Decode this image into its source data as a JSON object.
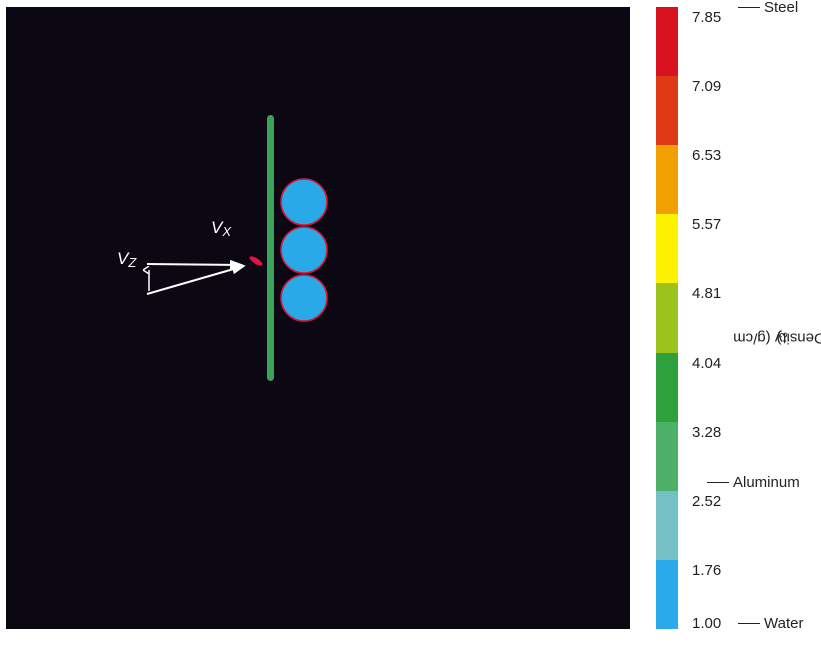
{
  "scene": {
    "background": "#0b0814",
    "plate_color": "#3aa35a",
    "sphere_color": "#29a9e8",
    "sphere_outline": "#d11a3a",
    "projectile_color": "#e0143c",
    "arrow_color": "#ffffff",
    "sphere_count": 3,
    "labels": {
      "vx": {
        "base": "V",
        "sub": "X"
      },
      "vz": {
        "base": "V",
        "sub": "Z"
      }
    }
  },
  "colorbar": {
    "title": "Density (g/cm",
    "title_sup": "3",
    "title_close": ")",
    "ticks": [
      "7.85",
      "7.09",
      "6.53",
      "5.57",
      "4.81",
      "4.04",
      "3.28",
      "2.52",
      "1.76",
      "1.00"
    ],
    "colors": [
      "#d8121e",
      "#df3a16",
      "#f0a000",
      "#fff200",
      "#9cc21e",
      "#2ea03c",
      "#4cb068",
      "#74c0c4",
      "#2aaaea"
    ],
    "materials": [
      {
        "label": "Steel",
        "value": 7.85
      },
      {
        "label": "Aluminum",
        "value": 2.7
      },
      {
        "label": "Water",
        "value": 1.0
      }
    ]
  }
}
